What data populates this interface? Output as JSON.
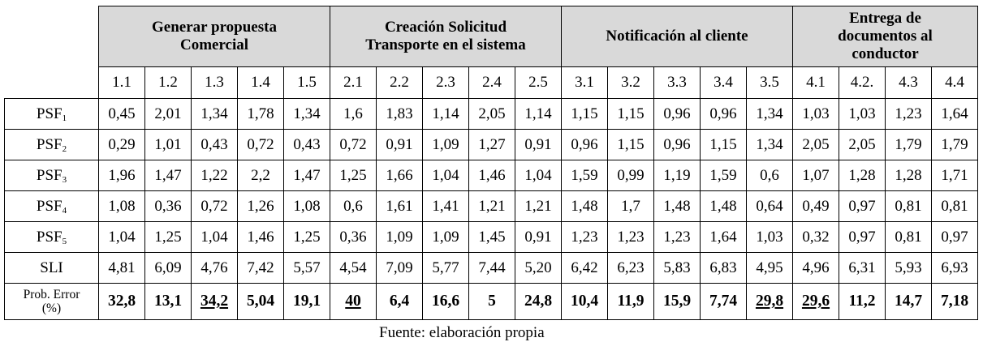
{
  "groups": [
    {
      "line1": "Generar propuesta",
      "line2": "Comercial",
      "line3": ""
    },
    {
      "line1": "Creación Solicitud",
      "line2": "Transporte en el sistema",
      "line3": ""
    },
    {
      "line1": "Notificación al cliente",
      "line2": "",
      "line3": ""
    },
    {
      "line1": "Entrega de",
      "line2": "documentos al",
      "line3": "conductor"
    }
  ],
  "subheaders": [
    "1.1",
    "1.2",
    "1.3",
    "1.4",
    "1.5",
    "2.1",
    "2.2",
    "2.3",
    "2.4",
    "2.5",
    "3.1",
    "3.2",
    "3.3",
    "3.4",
    "3.5",
    "4.1",
    "4.2.",
    "4.3",
    "4.4"
  ],
  "rows": [
    {
      "label": "PSF",
      "sub": "1",
      "values": [
        "0,45",
        "2,01",
        "1,34",
        "1,78",
        "1,34",
        "1,6",
        "1,83",
        "1,14",
        "2,05",
        "1,14",
        "1,15",
        "1,15",
        "0,96",
        "0,96",
        "1,34",
        "1,03",
        "1,03",
        "1,23",
        "1,64"
      ]
    },
    {
      "label": "PSF",
      "sub": "2",
      "values": [
        "0,29",
        "1,01",
        "0,43",
        "0,72",
        "0,43",
        "0,72",
        "0,91",
        "1,09",
        "1,27",
        "0,91",
        "0,96",
        "1,15",
        "0,96",
        "1,15",
        "1,34",
        "2,05",
        "2,05",
        "1,79",
        "1,79"
      ]
    },
    {
      "label": "PSF",
      "sub": "3",
      "values": [
        "1,96",
        "1,47",
        "1,22",
        "2,2",
        "1,47",
        "1,25",
        "1,66",
        "1,04",
        "1,46",
        "1,04",
        "1,59",
        "0,99",
        "1,19",
        "1,59",
        "0,6",
        "1,07",
        "1,28",
        "1,28",
        "1,71"
      ]
    },
    {
      "label": "PSF",
      "sub": "4",
      "values": [
        "1,08",
        "0,36",
        "0,72",
        "1,26",
        "1,08",
        "0,6",
        "1,61",
        "1,41",
        "1,21",
        "1,21",
        "1,48",
        "1,7",
        "1,48",
        "1,48",
        "0,64",
        "0,49",
        "0,97",
        "0,81",
        "0,81"
      ]
    },
    {
      "label": "PSF",
      "sub": "5",
      "values": [
        "1,04",
        "1,25",
        "1,04",
        "1,46",
        "1,25",
        "0,36",
        "1,09",
        "1,09",
        "1,45",
        "0,91",
        "1,23",
        "1,23",
        "1,23",
        "1,64",
        "1,03",
        "0,32",
        "0,97",
        "0,81",
        "0,97"
      ]
    },
    {
      "label": "SLI",
      "sub": "",
      "values": [
        "4,81",
        "6,09",
        "4,76",
        "7,42",
        "5,57",
        "4,54",
        "7,09",
        "5,77",
        "7,44",
        "5,20",
        "6,42",
        "6,23",
        "5,83",
        "6,83",
        "4,95",
        "4,96",
        "6,31",
        "5,93",
        "6,93"
      ]
    }
  ],
  "prob": {
    "label_line1": "Prob. Error",
    "label_line2": "(%)",
    "values": [
      "32,8",
      "13,1",
      "34,2",
      "5,04",
      "19,1",
      "40",
      "6,4",
      "16,6",
      "5",
      "24,8",
      "10,4",
      "11,9",
      "15,9",
      "7,74",
      "29,8",
      "29,6",
      "11,2",
      "14,7",
      "7,18"
    ],
    "underlined": [
      false,
      false,
      true,
      false,
      false,
      true,
      false,
      false,
      false,
      false,
      false,
      false,
      false,
      false,
      true,
      true,
      false,
      false,
      false
    ]
  },
  "footer": "Fuente: elaboración propia"
}
